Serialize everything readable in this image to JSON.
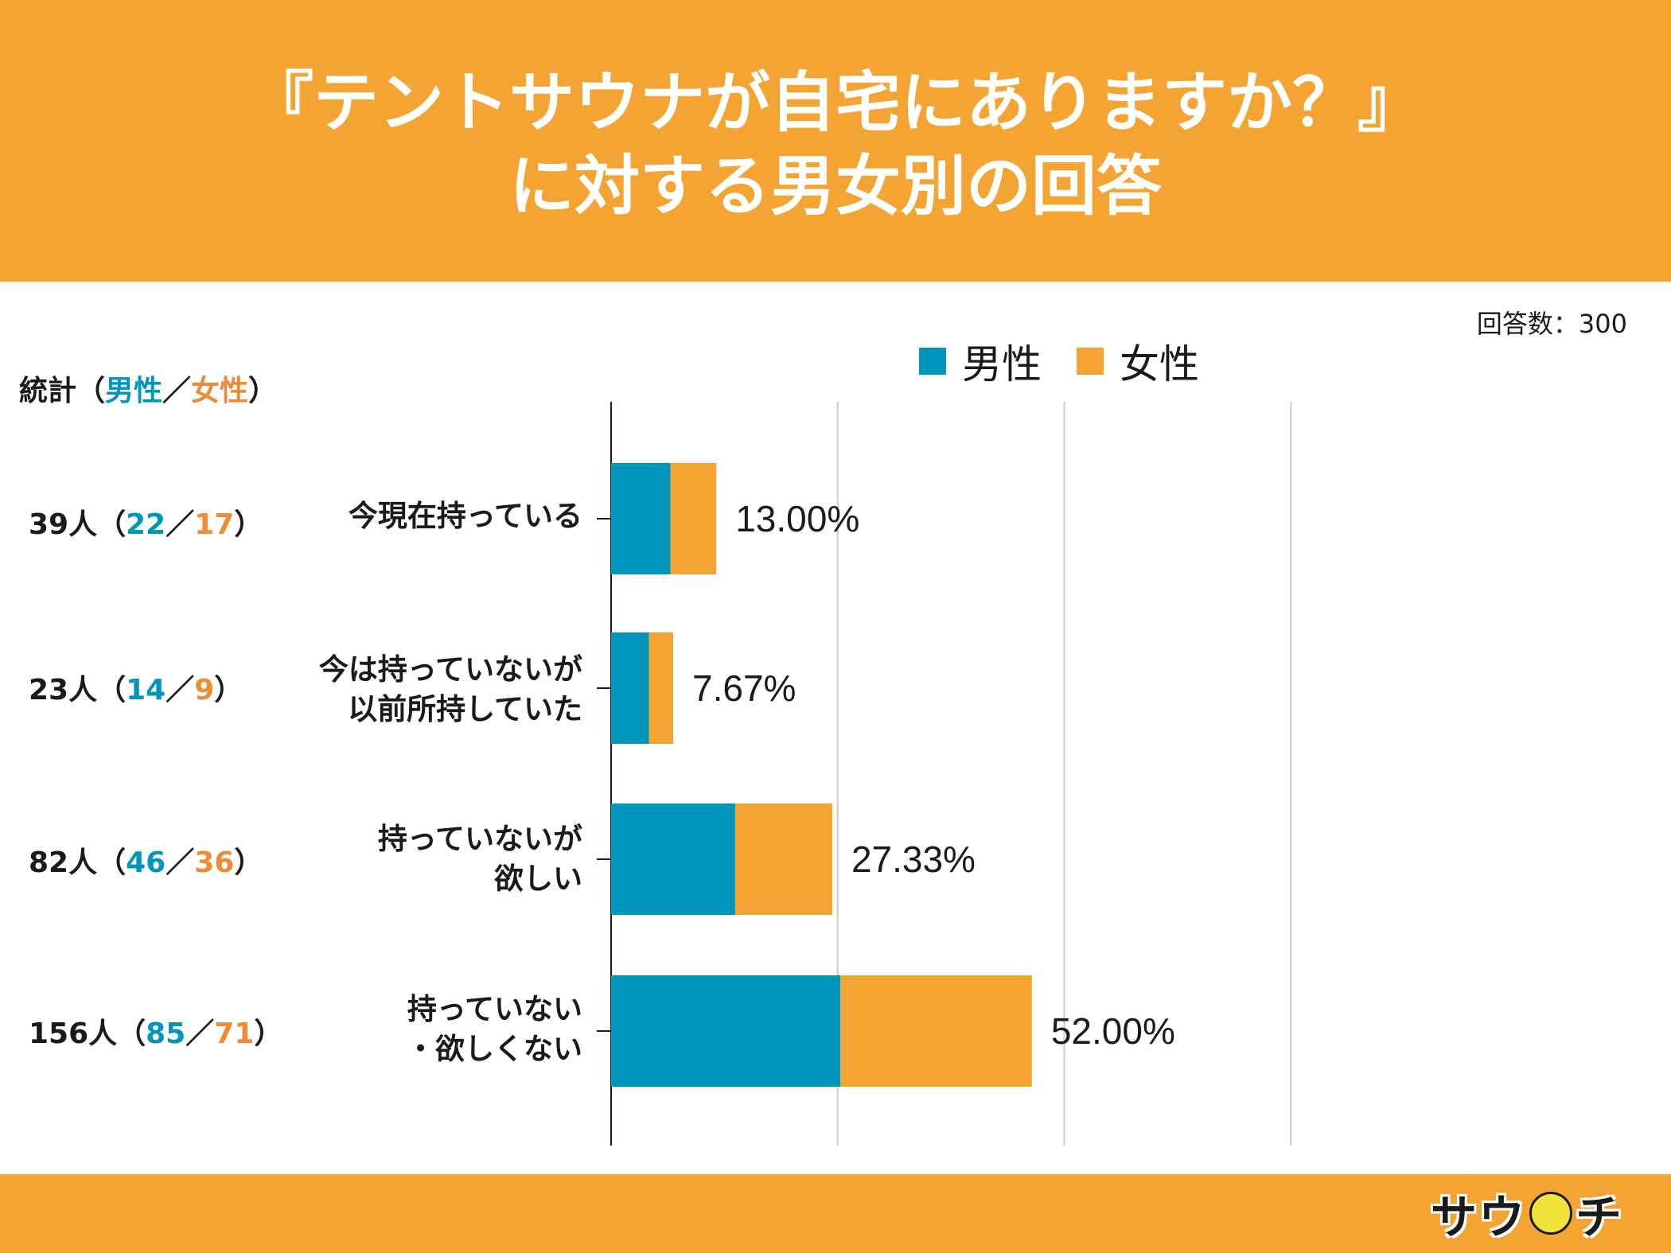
{
  "title_line1": "『テントサウナが自宅にありますか？』",
  "title_line2": "に対する男女別の回答",
  "respondents": "回答数：300",
  "legend": {
    "male": "男性",
    "female": "女性"
  },
  "stats_header": {
    "label": "統計（",
    "male": "男性",
    "sep": "／",
    "female": "女性",
    "close": "）"
  },
  "stats": [
    {
      "total": "39人（",
      "male": "22",
      "sep": "／",
      "female": "17",
      "close": "）"
    },
    {
      "total": "23人（",
      "male": "14",
      "sep": "／",
      "female": "9",
      "close": "）"
    },
    {
      "total": "82人（",
      "male": "46",
      "sep": "／",
      "female": "36",
      "close": "）"
    },
    {
      "total": "156人（",
      "male": "85",
      "sep": "／",
      "female": "71",
      "close": "）"
    }
  ],
  "logo_text": {
    "left": "サウ",
    "right": "チ"
  },
  "colors": {
    "header": "#f4a433",
    "male": "#0095bb",
    "female": "#f4a433",
    "grid": "#cccccc"
  },
  "chart_data": {
    "type": "bar",
    "orientation": "horizontal",
    "stacked": true,
    "categories": [
      [
        "今現在持っている"
      ],
      [
        "今は持っていないが",
        "以前所持していた"
      ],
      [
        "持っていないが",
        "欲しい"
      ],
      [
        "持っていない",
        "・欲しくない"
      ]
    ],
    "series": [
      {
        "name": "男性",
        "values": [
          7.33,
          4.67,
          15.33,
          28.33
        ]
      },
      {
        "name": "女性",
        "values": [
          5.67,
          3.0,
          12.0,
          23.67
        ]
      }
    ],
    "totals": [
      13.0,
      7.67,
      27.33,
      52.0
    ],
    "data_labels": [
      "13.00%",
      "7.67%",
      "27.33%",
      "52.00%"
    ],
    "xlim": [
      0,
      75
    ],
    "grid": true,
    "legend_position": "top"
  }
}
